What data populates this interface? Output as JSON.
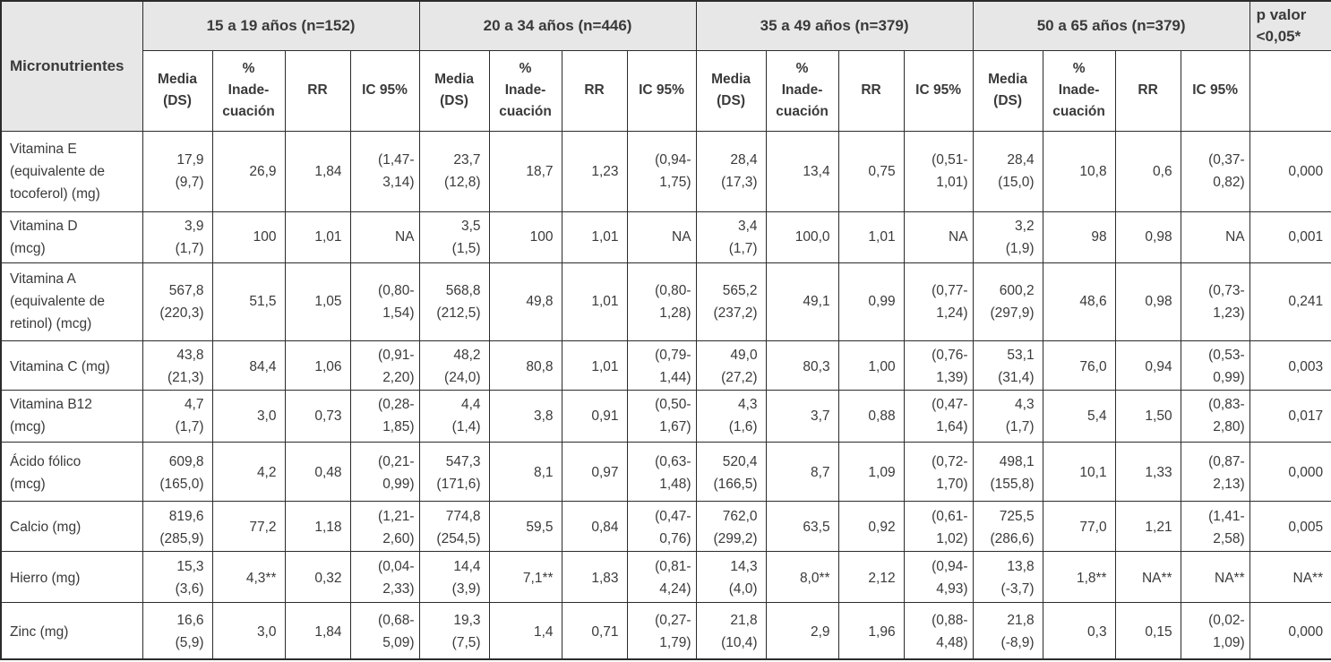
{
  "colors": {
    "header_bg": "#e7e7e7",
    "border": "#2b2b2b",
    "text": "#3a3a3a",
    "cell_bg": "#ffffff"
  },
  "table": {
    "corner_header": "Micronutrientes",
    "p_value_header": {
      "lines": [
        "p valor",
        "<0,05*"
      ]
    },
    "age_groups": [
      {
        "label": "15 a 19 años (n=152)"
      },
      {
        "label": "20 a 34 años (n=446)"
      },
      {
        "label": "35 a 49 años (n=379)"
      },
      {
        "label": "50 a 65 años (n=379)"
      }
    ],
    "sub_headers": [
      {
        "key": "media-ds",
        "lines": [
          "Media",
          "(DS)"
        ]
      },
      {
        "key": "pct-inadecuacion",
        "lines": [
          "%",
          "Inade-",
          "cuación"
        ]
      },
      {
        "key": "rr",
        "lines": [
          "RR"
        ]
      },
      {
        "key": "ic95",
        "lines": [
          "IC 95%"
        ]
      }
    ],
    "rows": [
      {
        "name_lines": [
          "Vitamina E",
          "(equivalente de",
          "tocoferol) (mg)"
        ],
        "groups": [
          {
            "media_ds": [
              "17,9",
              "(9,7)"
            ],
            "pct_inadecuacion": "26,9",
            "rr": "1,84",
            "ic95": [
              "(1,47-",
              "3,14)"
            ]
          },
          {
            "media_ds": [
              "23,7",
              "(12,8)"
            ],
            "pct_inadecuacion": "18,7",
            "rr": "1,23",
            "ic95": [
              "(0,94-",
              "1,75)"
            ]
          },
          {
            "media_ds": [
              "28,4",
              "(17,3)"
            ],
            "pct_inadecuacion": "13,4",
            "rr": "0,75",
            "ic95": [
              "(0,51-",
              "1,01)"
            ]
          },
          {
            "media_ds": [
              "28,4",
              "(15,0)"
            ],
            "pct_inadecuacion": "10,8",
            "rr": "0,6",
            "ic95": [
              "(0,37-",
              "0,82)"
            ]
          }
        ],
        "p_value": "0,000"
      },
      {
        "name_lines": [
          "Vitamina D",
          "(mcg)"
        ],
        "groups": [
          {
            "media_ds": [
              "3,9",
              "(1,7)"
            ],
            "pct_inadecuacion": "100",
            "rr": "1,01",
            "ic95": [
              "NA"
            ]
          },
          {
            "media_ds": [
              "3,5",
              "(1,5)"
            ],
            "pct_inadecuacion": "100",
            "rr": "1,01",
            "ic95": [
              "NA"
            ]
          },
          {
            "media_ds": [
              "3,4",
              "(1,7)"
            ],
            "pct_inadecuacion": "100,0",
            "rr": "1,01",
            "ic95": [
              "NA"
            ]
          },
          {
            "media_ds": [
              "3,2",
              "(1,9)"
            ],
            "pct_inadecuacion": "98",
            "rr": "0,98",
            "ic95": [
              "NA"
            ]
          }
        ],
        "p_value": "0,001"
      },
      {
        "name_lines": [
          "Vitamina A",
          "(equivalente de",
          "retinol) (mcg)"
        ],
        "groups": [
          {
            "media_ds": [
              "567,8",
              "(220,3)"
            ],
            "pct_inadecuacion": "51,5",
            "rr": "1,05",
            "ic95": [
              "(0,80-",
              "1,54)"
            ]
          },
          {
            "media_ds": [
              "568,8",
              "(212,5)"
            ],
            "pct_inadecuacion": "49,8",
            "rr": "1,01",
            "ic95": [
              "(0,80-",
              "1,28)"
            ]
          },
          {
            "media_ds": [
              "565,2",
              "(237,2)"
            ],
            "pct_inadecuacion": "49,1",
            "rr": "0,99",
            "ic95": [
              "(0,77-",
              "1,24)"
            ]
          },
          {
            "media_ds": [
              "600,2",
              "(297,9)"
            ],
            "pct_inadecuacion": "48,6",
            "rr": "0,98",
            "ic95": [
              "(0,73-",
              "1,23)"
            ]
          }
        ],
        "p_value": "0,241"
      },
      {
        "name_lines": [
          "Vitamina C (mg)"
        ],
        "groups": [
          {
            "media_ds": [
              "43,8",
              "(21,3)"
            ],
            "pct_inadecuacion": "84,4",
            "rr": "1,06",
            "ic95": [
              "(0,91-",
              "2,20)"
            ]
          },
          {
            "media_ds": [
              "48,2",
              "(24,0)"
            ],
            "pct_inadecuacion": "80,8",
            "rr": "1,01",
            "ic95": [
              "(0,79-",
              "1,44)"
            ]
          },
          {
            "media_ds": [
              "49,0",
              "(27,2)"
            ],
            "pct_inadecuacion": "80,3",
            "rr": "1,00",
            "ic95": [
              "(0,76-",
              "1,39)"
            ]
          },
          {
            "media_ds": [
              "53,1",
              "(31,4)"
            ],
            "pct_inadecuacion": "76,0",
            "rr": "0,94",
            "ic95": [
              "(0,53-",
              "0,99)"
            ]
          }
        ],
        "p_value": "0,003"
      },
      {
        "name_lines": [
          "Vitamina B12",
          "(mcg)"
        ],
        "groups": [
          {
            "media_ds": [
              "4,7",
              "(1,7)"
            ],
            "pct_inadecuacion": "3,0",
            "rr": "0,73",
            "ic95": [
              "(0,28-",
              "1,85)"
            ]
          },
          {
            "media_ds": [
              "4,4",
              "(1,4)"
            ],
            "pct_inadecuacion": "3,8",
            "rr": "0,91",
            "ic95": [
              "(0,50-",
              "1,67)"
            ]
          },
          {
            "media_ds": [
              "4,3",
              "(1,6)"
            ],
            "pct_inadecuacion": "3,7",
            "rr": "0,88",
            "ic95": [
              "(0,47-",
              "1,64)"
            ]
          },
          {
            "media_ds": [
              "4,3",
              "(1,7)"
            ],
            "pct_inadecuacion": "5,4",
            "rr": "1,50",
            "ic95": [
              "(0,83-",
              "2,80)"
            ]
          }
        ],
        "p_value": "0,017"
      },
      {
        "name_lines": [
          "Ácido fólico",
          "(mcg)"
        ],
        "groups": [
          {
            "media_ds": [
              "609,8",
              "(165,0)"
            ],
            "pct_inadecuacion": "4,2",
            "rr": "0,48",
            "ic95": [
              "(0,21-",
              "0,99)"
            ]
          },
          {
            "media_ds": [
              "547,3",
              "(171,6)"
            ],
            "pct_inadecuacion": "8,1",
            "rr": "0,97",
            "ic95": [
              "(0,63-",
              "1,48)"
            ]
          },
          {
            "media_ds": [
              "520,4",
              "(166,5)"
            ],
            "pct_inadecuacion": "8,7",
            "rr": "1,09",
            "ic95": [
              "(0,72-",
              "1,70)"
            ]
          },
          {
            "media_ds": [
              "498,1",
              "(155,8)"
            ],
            "pct_inadecuacion": "10,1",
            "rr": "1,33",
            "ic95": [
              "(0,87-",
              "2,13)"
            ]
          }
        ],
        "p_value": "0,000"
      },
      {
        "name_lines": [
          "Calcio (mg)"
        ],
        "groups": [
          {
            "media_ds": [
              "819,6",
              "(285,9)"
            ],
            "pct_inadecuacion": "77,2",
            "rr": "1,18",
            "ic95": [
              "(1,21-",
              "2,60)"
            ]
          },
          {
            "media_ds": [
              "774,8",
              "(254,5)"
            ],
            "pct_inadecuacion": "59,5",
            "rr": "0,84",
            "ic95": [
              "(0,47-",
              "0,76)"
            ]
          },
          {
            "media_ds": [
              "762,0",
              "(299,2)"
            ],
            "pct_inadecuacion": "63,5",
            "rr": "0,92",
            "ic95": [
              "(0,61-",
              "1,02)"
            ]
          },
          {
            "media_ds": [
              "725,5",
              "(286,6)"
            ],
            "pct_inadecuacion": "77,0",
            "rr": "1,21",
            "ic95": [
              "(1,41-",
              "2,58)"
            ]
          }
        ],
        "p_value": "0,005"
      },
      {
        "name_lines": [
          "Hierro (mg)"
        ],
        "groups": [
          {
            "media_ds": [
              "15,3",
              "(3,6)"
            ],
            "pct_inadecuacion": "4,3**",
            "rr": "0,32",
            "ic95": [
              "(0,04-",
              "2,33)"
            ]
          },
          {
            "media_ds": [
              "14,4",
              "(3,9)"
            ],
            "pct_inadecuacion": "7,1**",
            "rr": "1,83",
            "ic95": [
              "(0,81-",
              "4,24)"
            ]
          },
          {
            "media_ds": [
              "14,3",
              "(4,0)"
            ],
            "pct_inadecuacion": "8,0**",
            "rr": "2,12",
            "ic95": [
              "(0,94-",
              "4,93)"
            ]
          },
          {
            "media_ds": [
              "13,8",
              "(-3,7)"
            ],
            "pct_inadecuacion": "1,8**",
            "rr": "NA**",
            "ic95": [
              "NA**"
            ]
          }
        ],
        "p_value": "NA**"
      },
      {
        "name_lines": [
          "Zinc (mg)"
        ],
        "groups": [
          {
            "media_ds": [
              "16,6",
              "(5,9)"
            ],
            "pct_inadecuacion": "3,0",
            "rr": "1,84",
            "ic95": [
              "(0,68-",
              "5,09)"
            ]
          },
          {
            "media_ds": [
              "19,3",
              "(7,5)"
            ],
            "pct_inadecuacion": "1,4",
            "rr": "0,71",
            "ic95": [
              "(0,27-",
              "1,79)"
            ]
          },
          {
            "media_ds": [
              "21,8",
              "(10,4)"
            ],
            "pct_inadecuacion": "2,9",
            "rr": "1,96",
            "ic95": [
              "(0,88-",
              "4,48)"
            ]
          },
          {
            "media_ds": [
              "21,8",
              "(-8,9)"
            ],
            "pct_inadecuacion": "0,3",
            "rr": "0,15",
            "ic95": [
              "(0,02-",
              "1,09)"
            ]
          }
        ],
        "p_value": "0,000"
      }
    ]
  }
}
